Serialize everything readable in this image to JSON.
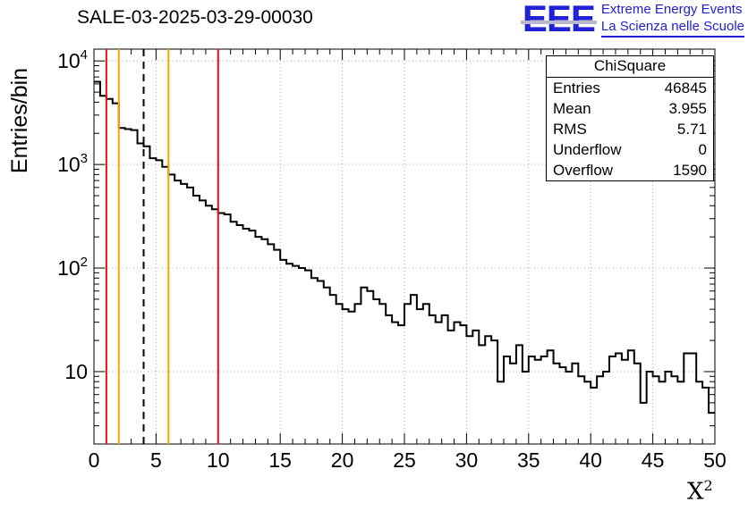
{
  "logo": {
    "acronym": "EEE",
    "line1": "Extreme Energy Events",
    "line2": "La Scienza nelle Scuole",
    "color": "#2121d6"
  },
  "stats": {
    "title": "ChiSquare",
    "rows": [
      {
        "label": "Entries",
        "value": "46845"
      },
      {
        "label": "Mean",
        "value": "3.955"
      },
      {
        "label": "RMS",
        "value": "5.71"
      },
      {
        "label": "Underflow",
        "value": "0"
      },
      {
        "label": "Overflow",
        "value": "1590"
      }
    ]
  },
  "chart_data": {
    "type": "bar",
    "subtype": "step-histogram",
    "title": "SALE-03-2025-03-29-00030",
    "xlabel_base": "X",
    "xlabel_exp": "2",
    "ylabel": "Entries/bin",
    "xlim": [
      0,
      50
    ],
    "ylim_log": [
      2,
      13000
    ],
    "yscale": "log",
    "grid": true,
    "line_color": "#000000",
    "bin_start": 0,
    "bin_width": 0.5,
    "values": [
      6300,
      4600,
      4300,
      3900,
      2250,
      2200,
      2150,
      1600,
      1500,
      1150,
      1100,
      950,
      800,
      700,
      650,
      600,
      500,
      450,
      400,
      370,
      340,
      330,
      280,
      260,
      240,
      230,
      200,
      190,
      170,
      150,
      120,
      110,
      105,
      100,
      95,
      80,
      75,
      65,
      55,
      45,
      40,
      38,
      45,
      65,
      60,
      50,
      45,
      35,
      30,
      28,
      45,
      55,
      40,
      45,
      35,
      30,
      35,
      25,
      30,
      28,
      22,
      25,
      18,
      22,
      20,
      8,
      14,
      12,
      18,
      10,
      14,
      13,
      14,
      16,
      12,
      11,
      10,
      12,
      9,
      8,
      7,
      9,
      10,
      14,
      15,
      13,
      16,
      12,
      5,
      10,
      9,
      8,
      10,
      9,
      8,
      15,
      15,
      8,
      7,
      4
    ],
    "xticks": [
      0,
      5,
      10,
      15,
      20,
      25,
      30,
      35,
      40,
      45,
      50
    ],
    "yticks": [
      {
        "value": 10,
        "exp": 1
      },
      {
        "value": 100,
        "exp": 2
      },
      {
        "value": 1000,
        "exp": 3
      },
      {
        "value": 10000,
        "exp": 4
      }
    ],
    "vlines": [
      {
        "x": 1,
        "color": "#f01010",
        "style": "solid"
      },
      {
        "x": 2,
        "color": "#ffa500",
        "style": "solid"
      },
      {
        "x": 4,
        "color": "#000000",
        "style": "dashed"
      },
      {
        "x": 6,
        "color": "#ffa500",
        "style": "solid"
      },
      {
        "x": 10,
        "color": "#f01010",
        "style": "solid"
      }
    ]
  }
}
